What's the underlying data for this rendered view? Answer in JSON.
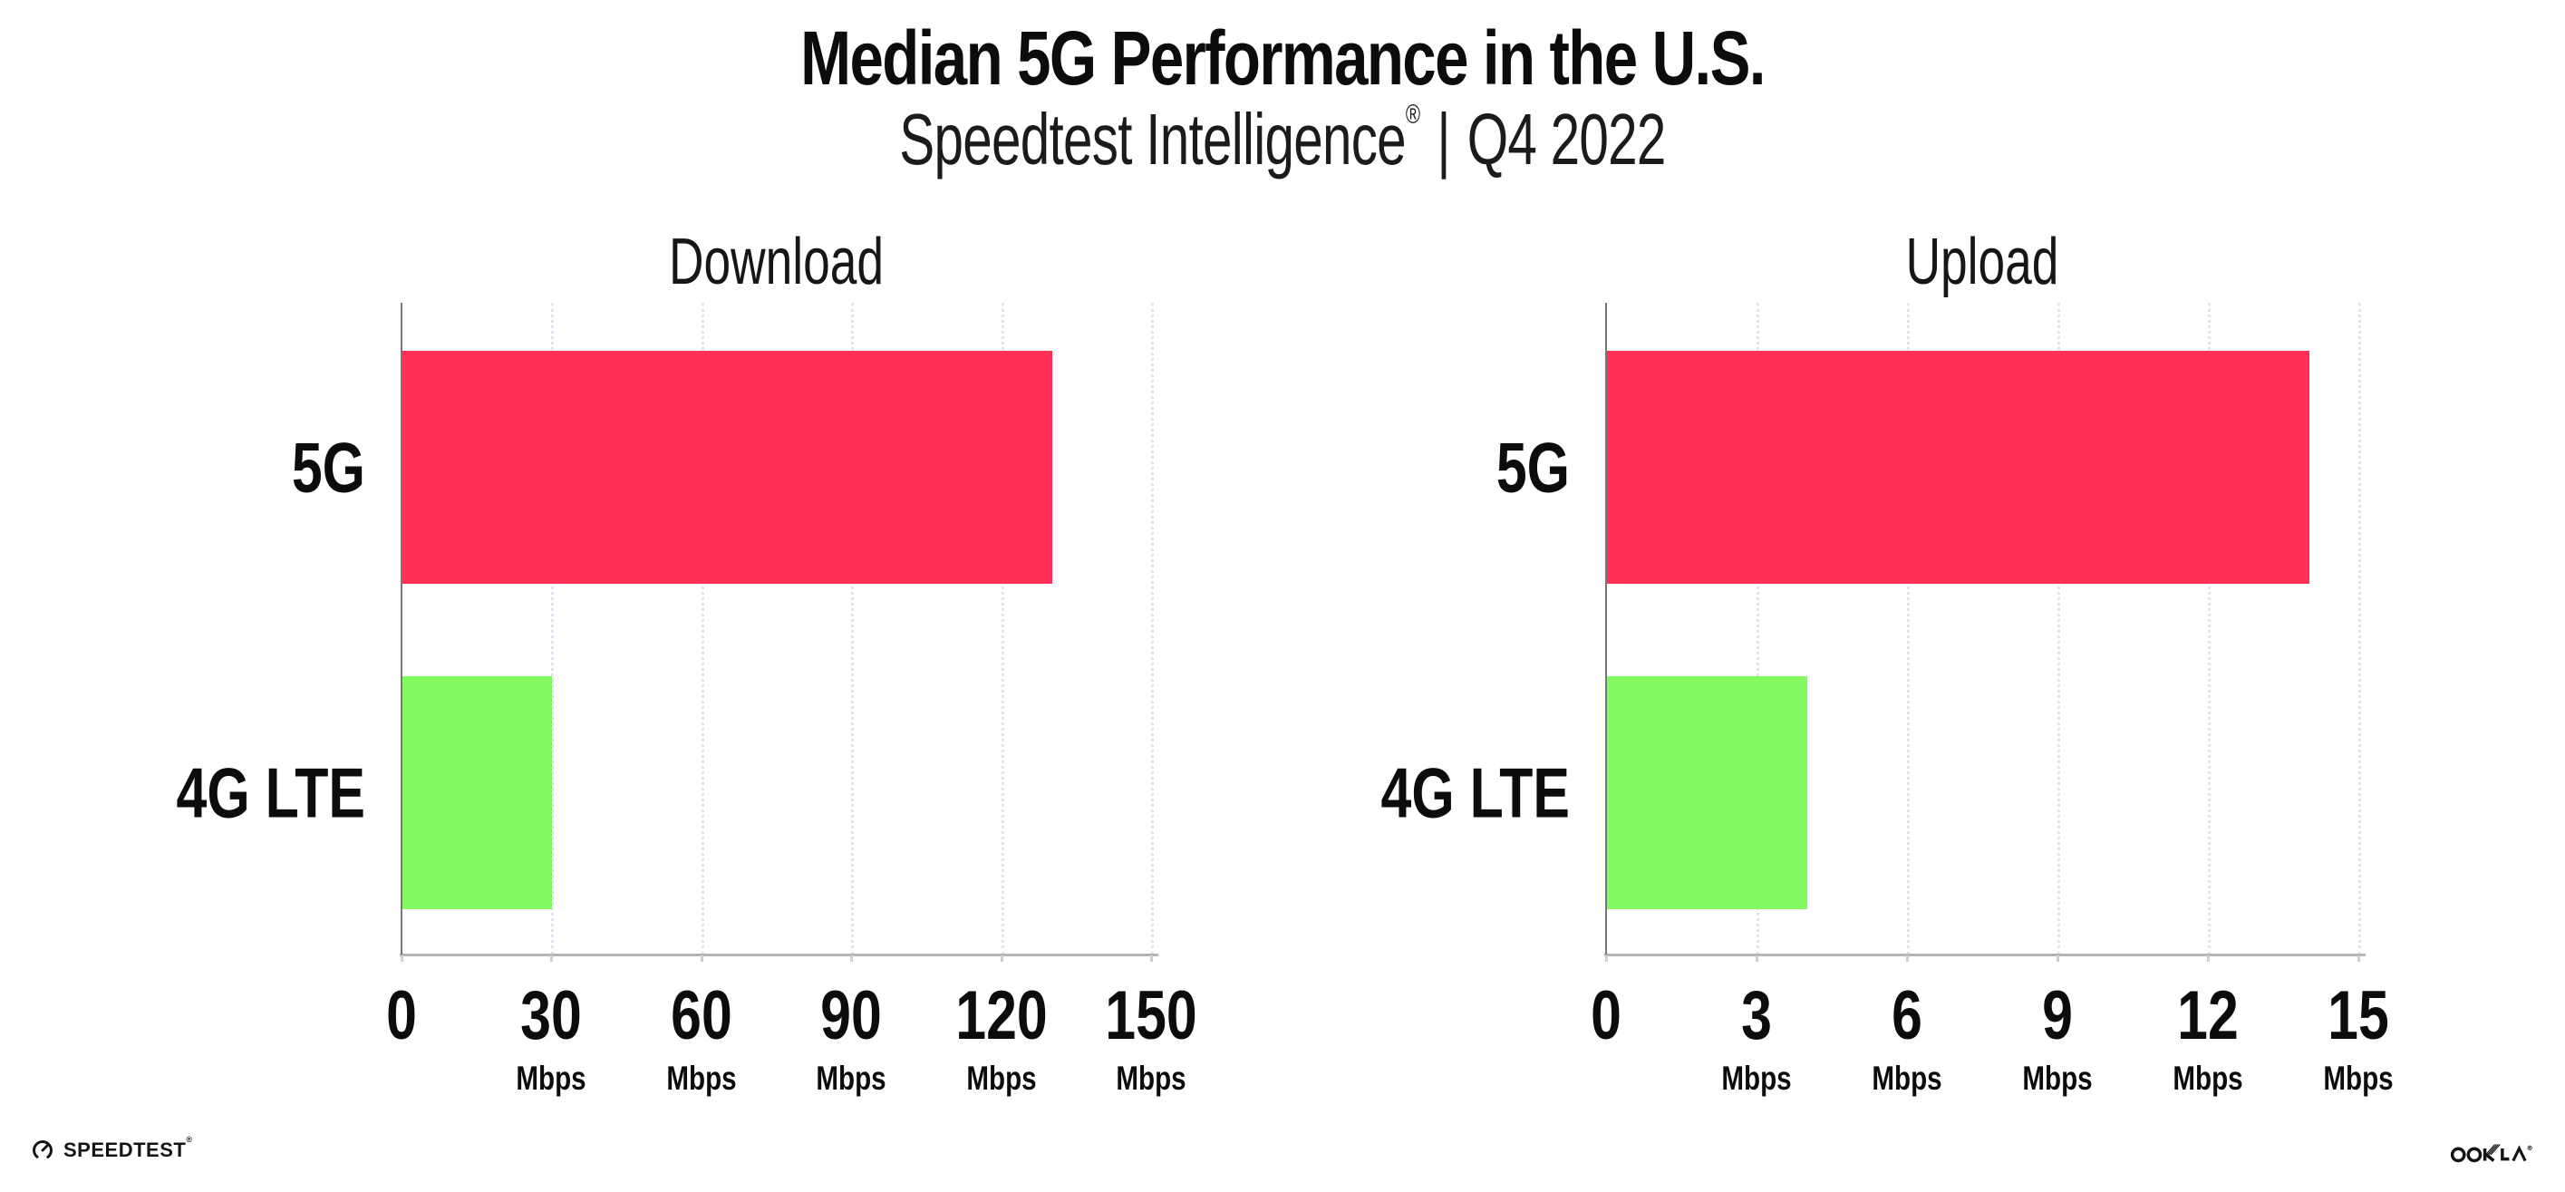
{
  "header": {
    "title": "Median 5G Performance in the U.S.",
    "subtitle": {
      "brand": "Speedtest Intelligence",
      "reg": "®",
      "separator": "|",
      "period": "Q4 2022"
    }
  },
  "colors": {
    "bar_5g": "#FF2F56",
    "bar_4g_lte": "#82FB63",
    "gridline": "#E2E3EF",
    "baseline": "#B5B5B5",
    "yaxis": "#777777",
    "tickstub": "#CFCFCF",
    "text": "#0C0C0C"
  },
  "chart_data": [
    {
      "type": "bar",
      "orientation": "horizontal",
      "title": "Download",
      "categories": [
        "5G",
        "4G LTE"
      ],
      "values": [
        130,
        30
      ],
      "unit": "Mbps",
      "xlim": [
        0,
        150
      ],
      "xticks": [
        0,
        30,
        60,
        90,
        120,
        150
      ],
      "bar_colors": [
        "#FF2F56",
        "#82FB63"
      ],
      "grid": "dotted-vertical",
      "legend": "none"
    },
    {
      "type": "bar",
      "orientation": "horizontal",
      "title": "Upload",
      "categories": [
        "5G",
        "4G LTE"
      ],
      "values": [
        14,
        4
      ],
      "unit": "Mbps",
      "xlim": [
        0,
        15
      ],
      "xticks": [
        0,
        3,
        6,
        9,
        12,
        15
      ],
      "bar_colors": [
        "#FF2F56",
        "#82FB63"
      ],
      "grid": "dotted-vertical",
      "legend": "none"
    }
  ],
  "footer": {
    "speedtest": {
      "label": "SPEEDTEST",
      "reg": "®"
    },
    "ookla": {
      "label": "OOKLA",
      "reg": "®"
    }
  }
}
